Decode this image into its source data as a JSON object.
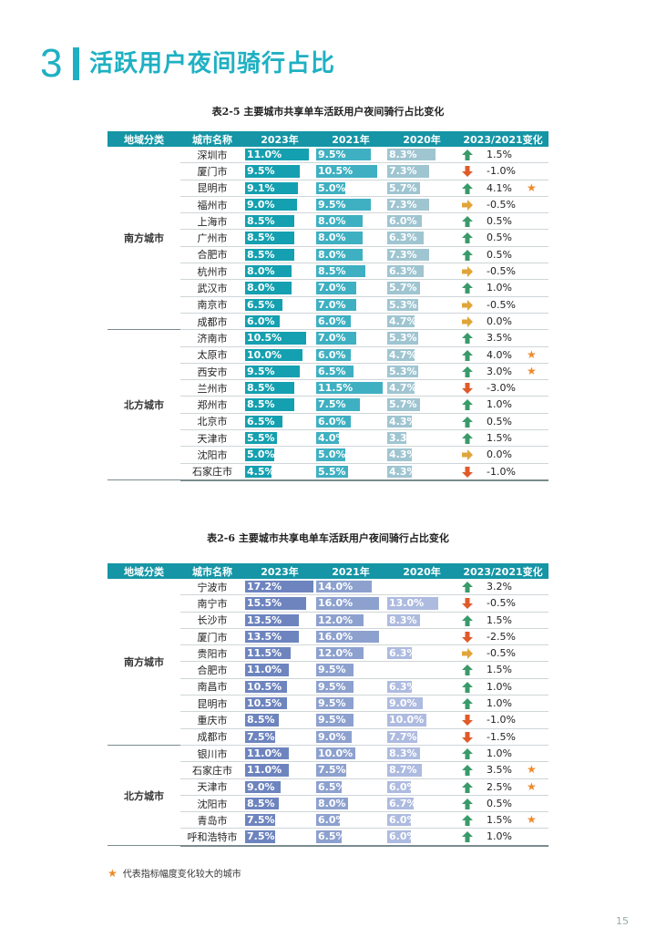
{
  "section": {
    "number": "3",
    "title": "活跃用户夜间骑行占比"
  },
  "colors": {
    "accent": "#1fb0c3",
    "up": "#3a9a6a",
    "down": "#e05a2a",
    "flat": "#e0a53a",
    "star": "#ee8a2a"
  },
  "table1": {
    "caption": "表2-5 主要城市共享单车活跃用户夜间骑行占比变化",
    "headers": [
      "地域分类",
      "城市名称",
      "2023年",
      "2021年",
      "2020年",
      "2023/2021变化"
    ],
    "regions": [
      {
        "name": "南方城市",
        "rows": [
          {
            "city": "深圳市",
            "y2023": "11.0%",
            "y2021": "9.5%",
            "y2020": "8.3%",
            "change": "1.5%",
            "trend": "up",
            "star": false
          },
          {
            "city": "厦门市",
            "y2023": "9.5%",
            "y2021": "10.5%",
            "y2020": "7.3%",
            "change": "-1.0%",
            "trend": "down",
            "star": false
          },
          {
            "city": "昆明市",
            "y2023": "9.1%",
            "y2021": "5.0%",
            "y2020": "5.7%",
            "change": "4.1%",
            "trend": "up",
            "star": true
          },
          {
            "city": "福州市",
            "y2023": "9.0%",
            "y2021": "9.5%",
            "y2020": "7.3%",
            "change": "-0.5%",
            "trend": "flat",
            "star": false
          },
          {
            "city": "上海市",
            "y2023": "8.5%",
            "y2021": "8.0%",
            "y2020": "6.0%",
            "change": "0.5%",
            "trend": "up",
            "star": false
          },
          {
            "city": "广州市",
            "y2023": "8.5%",
            "y2021": "8.0%",
            "y2020": "6.3%",
            "change": "0.5%",
            "trend": "up",
            "star": false
          },
          {
            "city": "合肥市",
            "y2023": "8.5%",
            "y2021": "8.0%",
            "y2020": "7.3%",
            "change": "0.5%",
            "trend": "up",
            "star": false
          },
          {
            "city": "杭州市",
            "y2023": "8.0%",
            "y2021": "8.5%",
            "y2020": "6.3%",
            "change": "-0.5%",
            "trend": "flat",
            "star": false
          },
          {
            "city": "武汉市",
            "y2023": "8.0%",
            "y2021": "7.0%",
            "y2020": "5.7%",
            "change": "1.0%",
            "trend": "up",
            "star": false
          },
          {
            "city": "南京市",
            "y2023": "6.5%",
            "y2021": "7.0%",
            "y2020": "5.3%",
            "change": "-0.5%",
            "trend": "flat",
            "star": false
          },
          {
            "city": "成都市",
            "y2023": "6.0%",
            "y2021": "6.0%",
            "y2020": "4.7%",
            "change": "0.0%",
            "trend": "flat",
            "star": false
          }
        ]
      },
      {
        "name": "北方城市",
        "rows": [
          {
            "city": "济南市",
            "y2023": "10.5%",
            "y2021": "7.0%",
            "y2020": "5.3%",
            "change": "3.5%",
            "trend": "up",
            "star": false
          },
          {
            "city": "太原市",
            "y2023": "10.0%",
            "y2021": "6.0%",
            "y2020": "4.7%",
            "change": "4.0%",
            "trend": "up",
            "star": true
          },
          {
            "city": "西安市",
            "y2023": "9.5%",
            "y2021": "6.5%",
            "y2020": "5.3%",
            "change": "3.0%",
            "trend": "up",
            "star": true
          },
          {
            "city": "兰州市",
            "y2023": "8.5%",
            "y2021": "11.5%",
            "y2020": "4.7%",
            "change": "-3.0%",
            "trend": "down",
            "star": false
          },
          {
            "city": "郑州市",
            "y2023": "8.5%",
            "y2021": "7.5%",
            "y2020": "5.7%",
            "change": "1.0%",
            "trend": "up",
            "star": false
          },
          {
            "city": "北京市",
            "y2023": "6.5%",
            "y2021": "6.0%",
            "y2020": "4.3%",
            "change": "0.5%",
            "trend": "up",
            "star": false
          },
          {
            "city": "天津市",
            "y2023": "5.5%",
            "y2021": "4.0%",
            "y2020": "3.3%",
            "change": "1.5%",
            "trend": "up",
            "star": false
          },
          {
            "city": "沈阳市",
            "y2023": "5.0%",
            "y2021": "5.0%",
            "y2020": "4.3%",
            "change": "0.0%",
            "trend": "flat",
            "star": false
          },
          {
            "city": "石家庄市",
            "y2023": "4.5%",
            "y2021": "5.5%",
            "y2020": "4.3%",
            "change": "-1.0%",
            "trend": "down",
            "star": false
          }
        ]
      }
    ]
  },
  "table2": {
    "caption": "表2-6 主要城市共享电单车活跃用户夜间骑行占比变化",
    "headers": [
      "地域分类",
      "城市名称",
      "2023年",
      "2021年",
      "2020年",
      "2023/2021变化"
    ],
    "regions": [
      {
        "name": "南方城市",
        "rows": [
          {
            "city": "宁波市",
            "y2023": "17.2%",
            "y2021": "14.0%",
            "y2020": "",
            "change": "3.2%",
            "trend": "up",
            "star": false
          },
          {
            "city": "南宁市",
            "y2023": "15.5%",
            "y2021": "16.0%",
            "y2020": "13.0%",
            "change": "-0.5%",
            "trend": "down",
            "star": false
          },
          {
            "city": "长沙市",
            "y2023": "13.5%",
            "y2021": "12.0%",
            "y2020": "8.3%",
            "change": "1.5%",
            "trend": "up",
            "star": false
          },
          {
            "city": "厦门市",
            "y2023": "13.5%",
            "y2021": "16.0%",
            "y2020": "",
            "change": "-2.5%",
            "trend": "down",
            "star": false
          },
          {
            "city": "贵阳市",
            "y2023": "11.5%",
            "y2021": "12.0%",
            "y2020": "6.3%",
            "change": "-0.5%",
            "trend": "flat",
            "star": false
          },
          {
            "city": "合肥市",
            "y2023": "11.0%",
            "y2021": "9.5%",
            "y2020": "",
            "change": "1.5%",
            "trend": "up",
            "star": false
          },
          {
            "city": "南昌市",
            "y2023": "10.5%",
            "y2021": "9.5%",
            "y2020": "6.3%",
            "change": "1.0%",
            "trend": "up",
            "star": false
          },
          {
            "city": "昆明市",
            "y2023": "10.5%",
            "y2021": "9.5%",
            "y2020": "9.0%",
            "change": "1.0%",
            "trend": "up",
            "star": false
          },
          {
            "city": "重庆市",
            "y2023": "8.5%",
            "y2021": "9.5%",
            "y2020": "10.0%",
            "change": "-1.0%",
            "trend": "down",
            "star": false
          },
          {
            "city": "成都市",
            "y2023": "7.5%",
            "y2021": "9.0%",
            "y2020": "7.7%",
            "change": "-1.5%",
            "trend": "down",
            "star": false
          }
        ]
      },
      {
        "name": "北方城市",
        "rows": [
          {
            "city": "银川市",
            "y2023": "11.0%",
            "y2021": "10.0%",
            "y2020": "8.3%",
            "change": "1.0%",
            "trend": "up",
            "star": false
          },
          {
            "city": "石家庄市",
            "y2023": "11.0%",
            "y2021": "7.5%",
            "y2020": "8.7%",
            "change": "3.5%",
            "trend": "up",
            "star": true
          },
          {
            "city": "天津市",
            "y2023": "9.0%",
            "y2021": "6.5%",
            "y2020": "6.0%",
            "change": "2.5%",
            "trend": "up",
            "star": true
          },
          {
            "city": "沈阳市",
            "y2023": "8.5%",
            "y2021": "8.0%",
            "y2020": "6.7%",
            "change": "0.5%",
            "trend": "up",
            "star": false
          },
          {
            "city": "青岛市",
            "y2023": "7.5%",
            "y2021": "6.0%",
            "y2020": "6.0%",
            "change": "1.5%",
            "trend": "up",
            "star": true
          },
          {
            "city": "呼和浩特市",
            "y2023": "7.5%",
            "y2021": "6.5%",
            "y2020": "6.0%",
            "change": "1.0%",
            "trend": "up",
            "star": false
          }
        ]
      }
    ]
  },
  "note": {
    "star": "★",
    "text": "代表指标幅度变化较大的城市"
  },
  "page_number": "15"
}
